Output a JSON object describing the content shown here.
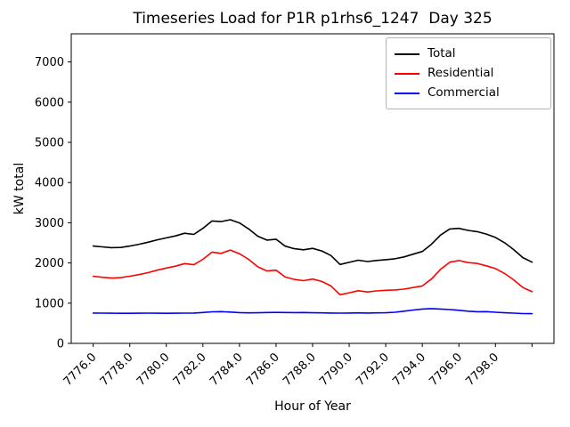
{
  "chart_data": {
    "type": "line",
    "title": "Timeseries Load for P1R p1rhs6_1247  Day 325",
    "xlabel": "Hour of Year",
    "ylabel": "kW total",
    "xlim": [
      7774.8,
      7801.2
    ],
    "ylim": [
      0,
      7700
    ],
    "grid": false,
    "legend": {
      "position": "upper-right",
      "entries": [
        "Total",
        "Residential",
        "Commercial"
      ]
    },
    "x": [
      7776,
      7776.5,
      7777,
      7777.5,
      7778,
      7778.5,
      7779,
      7779.5,
      7780,
      7780.5,
      7781,
      7781.5,
      7782,
      7782.5,
      7783,
      7783.5,
      7784,
      7784.5,
      7785,
      7785.5,
      7786,
      7786.5,
      7787,
      7787.5,
      7788,
      7788.5,
      7789,
      7789.5,
      7790,
      7790.5,
      7791,
      7791.5,
      7792,
      7792.5,
      7793,
      7793.5,
      7794,
      7794.5,
      7795,
      7795.5,
      7796,
      7796.5,
      7797,
      7797.5,
      7798,
      7798.5,
      7799,
      7799.5,
      7800
    ],
    "series": [
      {
        "name": "Total",
        "color": "#000000",
        "values": [
          2420,
          2400,
          2380,
          2385,
          2420,
          2465,
          2515,
          2575,
          2625,
          2672,
          2740,
          2710,
          2860,
          3045,
          3030,
          3075,
          2995,
          2848,
          2667,
          2568,
          2590,
          2418,
          2355,
          2328,
          2362,
          2298,
          2185,
          1962,
          2015,
          2068,
          2035,
          2063,
          2082,
          2105,
          2150,
          2220,
          2285,
          2465,
          2695,
          2845,
          2860,
          2810,
          2778,
          2720,
          2635,
          2502,
          2332,
          2132,
          2020
        ]
      },
      {
        "name": "Residential",
        "color": "#ff0000",
        "values": [
          1670,
          1645,
          1625,
          1635,
          1670,
          1710,
          1760,
          1820,
          1875,
          1920,
          1985,
          1955,
          2090,
          2270,
          2240,
          2320,
          2230,
          2090,
          1905,
          1800,
          1820,
          1650,
          1590,
          1560,
          1600,
          1540,
          1430,
          1210,
          1260,
          1310,
          1280,
          1305,
          1320,
          1330,
          1350,
          1390,
          1430,
          1600,
          1840,
          2020,
          2060,
          2010,
          1990,
          1930,
          1860,
          1740,
          1580,
          1390,
          1285
        ]
      },
      {
        "name": "Commercial",
        "color": "#0000ff",
        "values": [
          755,
          752,
          750,
          748,
          748,
          750,
          752,
          750,
          748,
          750,
          752,
          755,
          768,
          785,
          790,
          778,
          765,
          758,
          762,
          768,
          770,
          768,
          765,
          768,
          762,
          758,
          755,
          752,
          755,
          758,
          755,
          758,
          762,
          775,
          800,
          830,
          855,
          865,
          855,
          840,
          822,
          800,
          788,
          790,
          775,
          762,
          752,
          742,
          738
        ]
      }
    ],
    "xticks": [
      {
        "v": 7776,
        "label": "7776.0"
      },
      {
        "v": 7778,
        "label": "7778.0"
      },
      {
        "v": 7780,
        "label": "7780.0"
      },
      {
        "v": 7782,
        "label": "7782.0"
      },
      {
        "v": 7784,
        "label": "7784.0"
      },
      {
        "v": 7786,
        "label": "7786.0"
      },
      {
        "v": 7788,
        "label": "7788.0"
      },
      {
        "v": 7790,
        "label": "7790.0"
      },
      {
        "v": 7792,
        "label": "7792.0"
      },
      {
        "v": 7794,
        "label": "7794.0"
      },
      {
        "v": 7796,
        "label": "7796.0"
      },
      {
        "v": 7798,
        "label": "7798.0"
      },
      {
        "v": 7800,
        "label": ""
      }
    ],
    "yticks": [
      {
        "v": 0,
        "label": "0"
      },
      {
        "v": 1000,
        "label": "1000"
      },
      {
        "v": 2000,
        "label": "2000"
      },
      {
        "v": 3000,
        "label": "3000"
      },
      {
        "v": 4000,
        "label": "4000"
      },
      {
        "v": 5000,
        "label": "5000"
      },
      {
        "v": 6000,
        "label": "6000"
      },
      {
        "v": 7000,
        "label": "7000"
      }
    ]
  }
}
